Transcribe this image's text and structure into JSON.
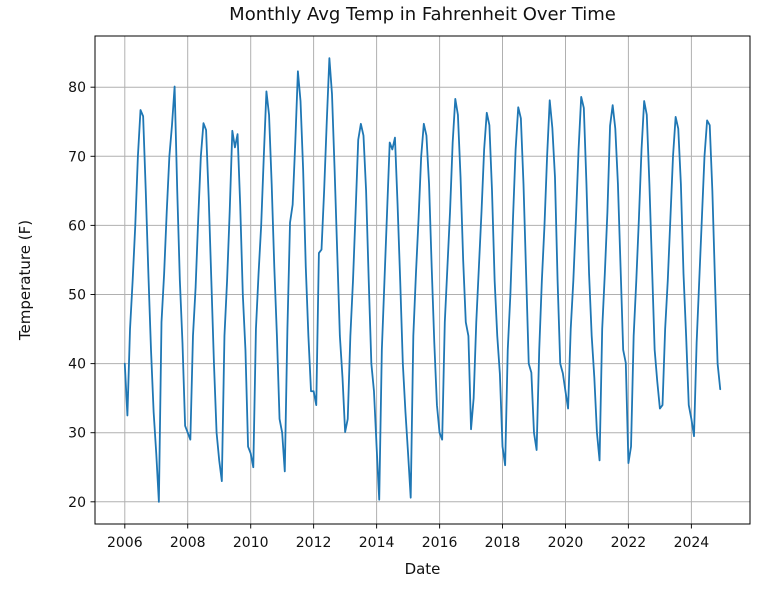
{
  "figure": {
    "title": "Monthly Avg Temp in Fahrenheit Over Time",
    "xlabel": "Date",
    "ylabel": "Temperature (F)"
  },
  "chart_data": {
    "type": "line",
    "title": "Monthly Avg Temp in Fahrenheit Over Time",
    "xlabel": "Date",
    "ylabel": "Temperature (F)",
    "x_start": "2006-01",
    "x_end": "2024-12",
    "frequency": "monthly",
    "xticks": [
      2006,
      2008,
      2010,
      2012,
      2014,
      2016,
      2018,
      2020,
      2022,
      2024
    ],
    "yticks": [
      20,
      30,
      40,
      50,
      60,
      70,
      80
    ],
    "grid": true,
    "legend": "none",
    "line_color": "#1f77b4",
    "grid_color": "#b0b0b0",
    "values": [
      40,
      32.5,
      45,
      52,
      60,
      70,
      76.7,
      75.8,
      65,
      53,
      42,
      33,
      27,
      20,
      46,
      53,
      62,
      70,
      74.5,
      80.1,
      65,
      52,
      43,
      31,
      30,
      29,
      44,
      51,
      61,
      70,
      74.8,
      73.8,
      64,
      52,
      40,
      30,
      26,
      23,
      44,
      52,
      62,
      73.7,
      71.3,
      73.2,
      63,
      50,
      42,
      28,
      27,
      25,
      45,
      53,
      60,
      70,
      79.4,
      76,
      66,
      54,
      44,
      32,
      30,
      24.4,
      45,
      60.4,
      63,
      72,
      82.3,
      78,
      68,
      54,
      44,
      36,
      36,
      34,
      56,
      56.5,
      65,
      75,
      84.2,
      79,
      68,
      56,
      44,
      38,
      30.1,
      32,
      44,
      52,
      62,
      72.4,
      74.7,
      73,
      65,
      52,
      40,
      36,
      28,
      20.3,
      42,
      52,
      62,
      72,
      71,
      72.7,
      63,
      52,
      40,
      33,
      27,
      20.6,
      44,
      53,
      61,
      70,
      74.7,
      73,
      66,
      54,
      43,
      34,
      30,
      29,
      46,
      54,
      62,
      72,
      78.3,
      76,
      67,
      55,
      46,
      44,
      30.5,
      35,
      46,
      54,
      62,
      71,
      76.3,
      74.5,
      65,
      52,
      44,
      38.5,
      28,
      25.3,
      42,
      50,
      61,
      71,
      77.1,
      75.5,
      66,
      53,
      40,
      38.7,
      30,
      27.5,
      42,
      52,
      60,
      70,
      78.1,
      74.1,
      67,
      52,
      40,
      38.6,
      36,
      33.5,
      45,
      52,
      61,
      71,
      78.6,
      77,
      66,
      53,
      44,
      38,
      30,
      26,
      45,
      53,
      62,
      74.4,
      77.4,
      74,
      66,
      54,
      42,
      40.1,
      25.6,
      28,
      44,
      52,
      61,
      71,
      78,
      76,
      66,
      54,
      42,
      37.4,
      33.5,
      34,
      45,
      52,
      61,
      70,
      75.7,
      74,
      66,
      53,
      44,
      34,
      32,
      29.5,
      43,
      52,
      61,
      70,
      75.2,
      74.5,
      65,
      52,
      40,
      36.3
    ]
  }
}
